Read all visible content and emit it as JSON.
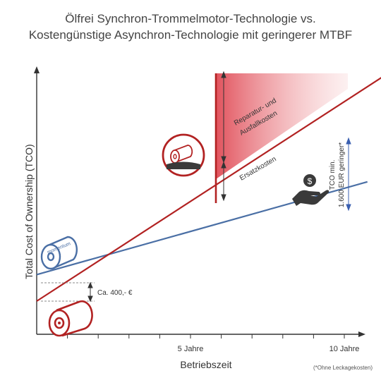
{
  "chart_data": {
    "type": "line",
    "title_line1": "Ölfrei Synchron-Trommelmotor-Technologie vs.",
    "title_line2": "Kostengünstige Asynchron-Technologie mit geringerer MTBF",
    "xlabel": "Betriebszeit",
    "ylabel": "Total Cost of Ownership (TCO)",
    "x_ticks": [
      {
        "x": 5,
        "label": "5 Jahre"
      },
      {
        "x": 10,
        "label": "10 Jahre"
      }
    ],
    "xlim": [
      0,
      11
    ],
    "series": [
      {
        "color": "#4a6fa5",
        "x": [
          0,
          10.75
        ],
        "y": [
          1.8,
          4.6
        ]
      },
      {
        "color": "#b22222",
        "x": [
          0,
          11.3
        ],
        "y": [
          1.0,
          7.8
        ]
      }
    ],
    "annotations": {
      "initial_gap": "Ca. 400,- €",
      "replacement": "Ersatzkosten",
      "repair_line1": "Reparatur- und",
      "repair_line2": "Ausfallkosten",
      "tco_line1": "TCO min.",
      "tco_line2": "1.600 EUR geringer*",
      "momentum": "momentum",
      "footnote": "(*Ohne Leckagekosten)"
    },
    "colors": {
      "synchron": "#4a6fa5",
      "asynchron": "#b22222",
      "failure_fill": "#e8838a"
    },
    "icons": [
      "motor-momentum-icon",
      "motor-red-icon",
      "motor-failure-icon",
      "money-hand-icon"
    ]
  }
}
